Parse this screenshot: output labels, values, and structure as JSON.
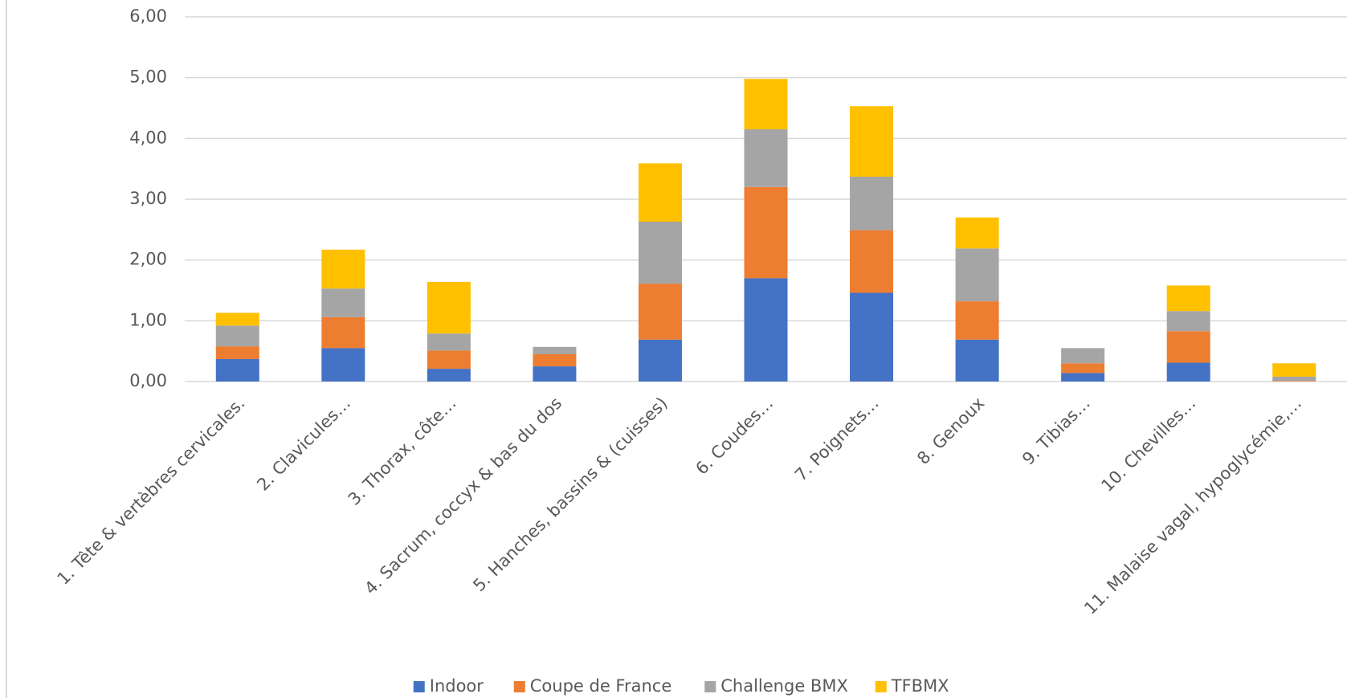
{
  "chart_data": {
    "type": "stacked_bar",
    "categories": [
      "1. Tête & vertèbres cervicales.",
      "2. Clavicules…",
      "3. Thorax, côte…",
      "4. Sacrum, coccyx & bas du dos",
      "5. Hanches, bassins & (cuisses)",
      "6. Coudes…",
      "7. Poignets…",
      "8. Genoux",
      "9. Tibias…",
      "10. Chevilles…",
      "11. Malaise vagal, hypoglycémie,…"
    ],
    "series": [
      {
        "name": "Indoor",
        "color": "#4472c4",
        "values": [
          0.37,
          0.55,
          0.21,
          0.25,
          0.69,
          1.7,
          1.46,
          0.69,
          0.14,
          0.31,
          0
        ]
      },
      {
        "name": "Coupe de France",
        "color": "#ed7d31",
        "values": [
          0.21,
          0.51,
          0.3,
          0.2,
          0.92,
          1.5,
          1.03,
          0.63,
          0.16,
          0.52,
          0.01
        ]
      },
      {
        "name": "Challenge BMX",
        "color": "#a5a5a5",
        "values": [
          0.34,
          0.47,
          0.28,
          0.12,
          1.02,
          0.95,
          0.88,
          0.87,
          0.25,
          0.33,
          0.07
        ]
      },
      {
        "name": "TFBMX",
        "color": "#ffc000",
        "values": [
          0.21,
          0.64,
          0.85,
          0,
          0.96,
          0.83,
          1.16,
          0.51,
          0,
          0.42,
          0.22
        ]
      }
    ],
    "ylim": [
      0,
      6
    ],
    "yticks": [
      {
        "value": 0,
        "label": "0,00"
      },
      {
        "value": 1,
        "label": "1,00"
      },
      {
        "value": 2,
        "label": "2,00"
      },
      {
        "value": 3,
        "label": "3,00"
      },
      {
        "value": 4,
        "label": "4,00"
      },
      {
        "value": 5,
        "label": "5,00"
      },
      {
        "value": 6,
        "label": "6,00"
      }
    ],
    "grid": true,
    "legend": "bottom"
  }
}
